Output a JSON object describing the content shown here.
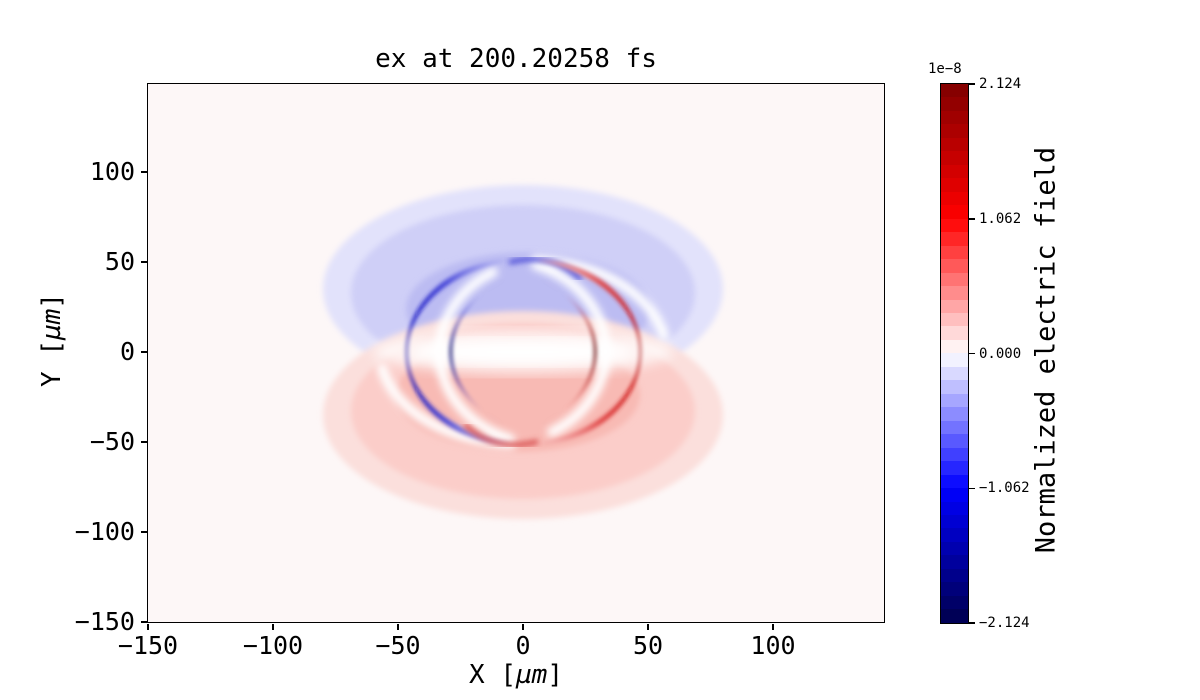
{
  "title": "ex at 200.20258 fs",
  "x_axis": {
    "label_pre": "X [",
    "label_mu": "µm",
    "label_post": "]",
    "ticks": [
      "−150",
      "−100",
      "−50",
      "0",
      "50",
      "100"
    ],
    "tick_values": [
      -150,
      -100,
      -50,
      0,
      50,
      100
    ]
  },
  "y_axis": {
    "label_pre": "Y [",
    "label_mu": "µm",
    "label_post": "]",
    "ticks": [
      "100",
      "50",
      "0",
      "−50",
      "−100",
      "−150"
    ],
    "tick_values": [
      100,
      50,
      0,
      -50,
      -100,
      -150
    ]
  },
  "colorbar": {
    "label": "Normalized electric field",
    "offset_text": "1e−8",
    "ticks": [
      "2.124",
      "1.062",
      "0.000",
      "−1.062",
      "−2.124"
    ],
    "tick_values": [
      2.124,
      1.062,
      0,
      -1.062,
      -2.124
    ],
    "colormap": "seismic",
    "levels": 40,
    "vmin": -2.124e-08,
    "vmax": 2.124e-08
  },
  "colors": {
    "figure_background": "#ffffff",
    "plot_background": "#fdf7f7",
    "axis": "#000000",
    "negative_peak": "#00004d",
    "negative_mid": "#0000ff",
    "zero": "#ffffff",
    "positive_mid": "#ff0000",
    "positive_peak": "#800000"
  },
  "chart_data": {
    "type": "heatmap",
    "title": "ex at 200.20258 fs",
    "xlabel": "X [µm]",
    "ylabel": "Y [µm]",
    "xlim": [
      -150,
      145
    ],
    "ylim": [
      -150,
      149
    ],
    "x_ticks": [
      -150,
      -100,
      -50,
      0,
      50,
      100
    ],
    "y_ticks": [
      100,
      50,
      0,
      -50,
      -100,
      -150
    ],
    "grid": false,
    "colormap": "seismic",
    "colorbar": {
      "label": "Normalized electric field",
      "offset": "1e-8",
      "ticks": [
        2.124,
        1.062,
        0.0,
        -1.062,
        -2.124
      ],
      "vmin": -2.124e-08,
      "vmax": 2.124e-08,
      "position": "right",
      "discrete_levels": 40
    },
    "features": [
      {
        "name": "negative-crescent-blue",
        "description": "Sharp C-shaped arc opening right, radius ≈ 50 µm centered near origin, tips near (−5, ±50) µm, thickest (≈20 µm) at x ≈ −52 µm",
        "peak_value": -2.1e-08
      },
      {
        "name": "positive-crescent-red",
        "description": "Mirror-image C-shaped arc opening left, radius ≈ 50 µm, tips near (8, ±50) µm, thickest at x ≈ 53 µm",
        "peak_value": 2.1e-08
      },
      {
        "name": "diffuse-negative-lobe",
        "description": "Light blue elliptical halo over upper half, x ≈ −80..80 µm, y ≈ −10..95 µm",
        "approx_value": -3e-09
      },
      {
        "name": "diffuse-positive-lobe",
        "description": "Light red elliptical halo over lower half, x ≈ −80..80 µm, y ≈ −95..10 µm",
        "approx_value": 3e-09
      },
      {
        "name": "zero-band",
        "description": "White band along y ≈ 0 between the two crescents"
      }
    ]
  }
}
